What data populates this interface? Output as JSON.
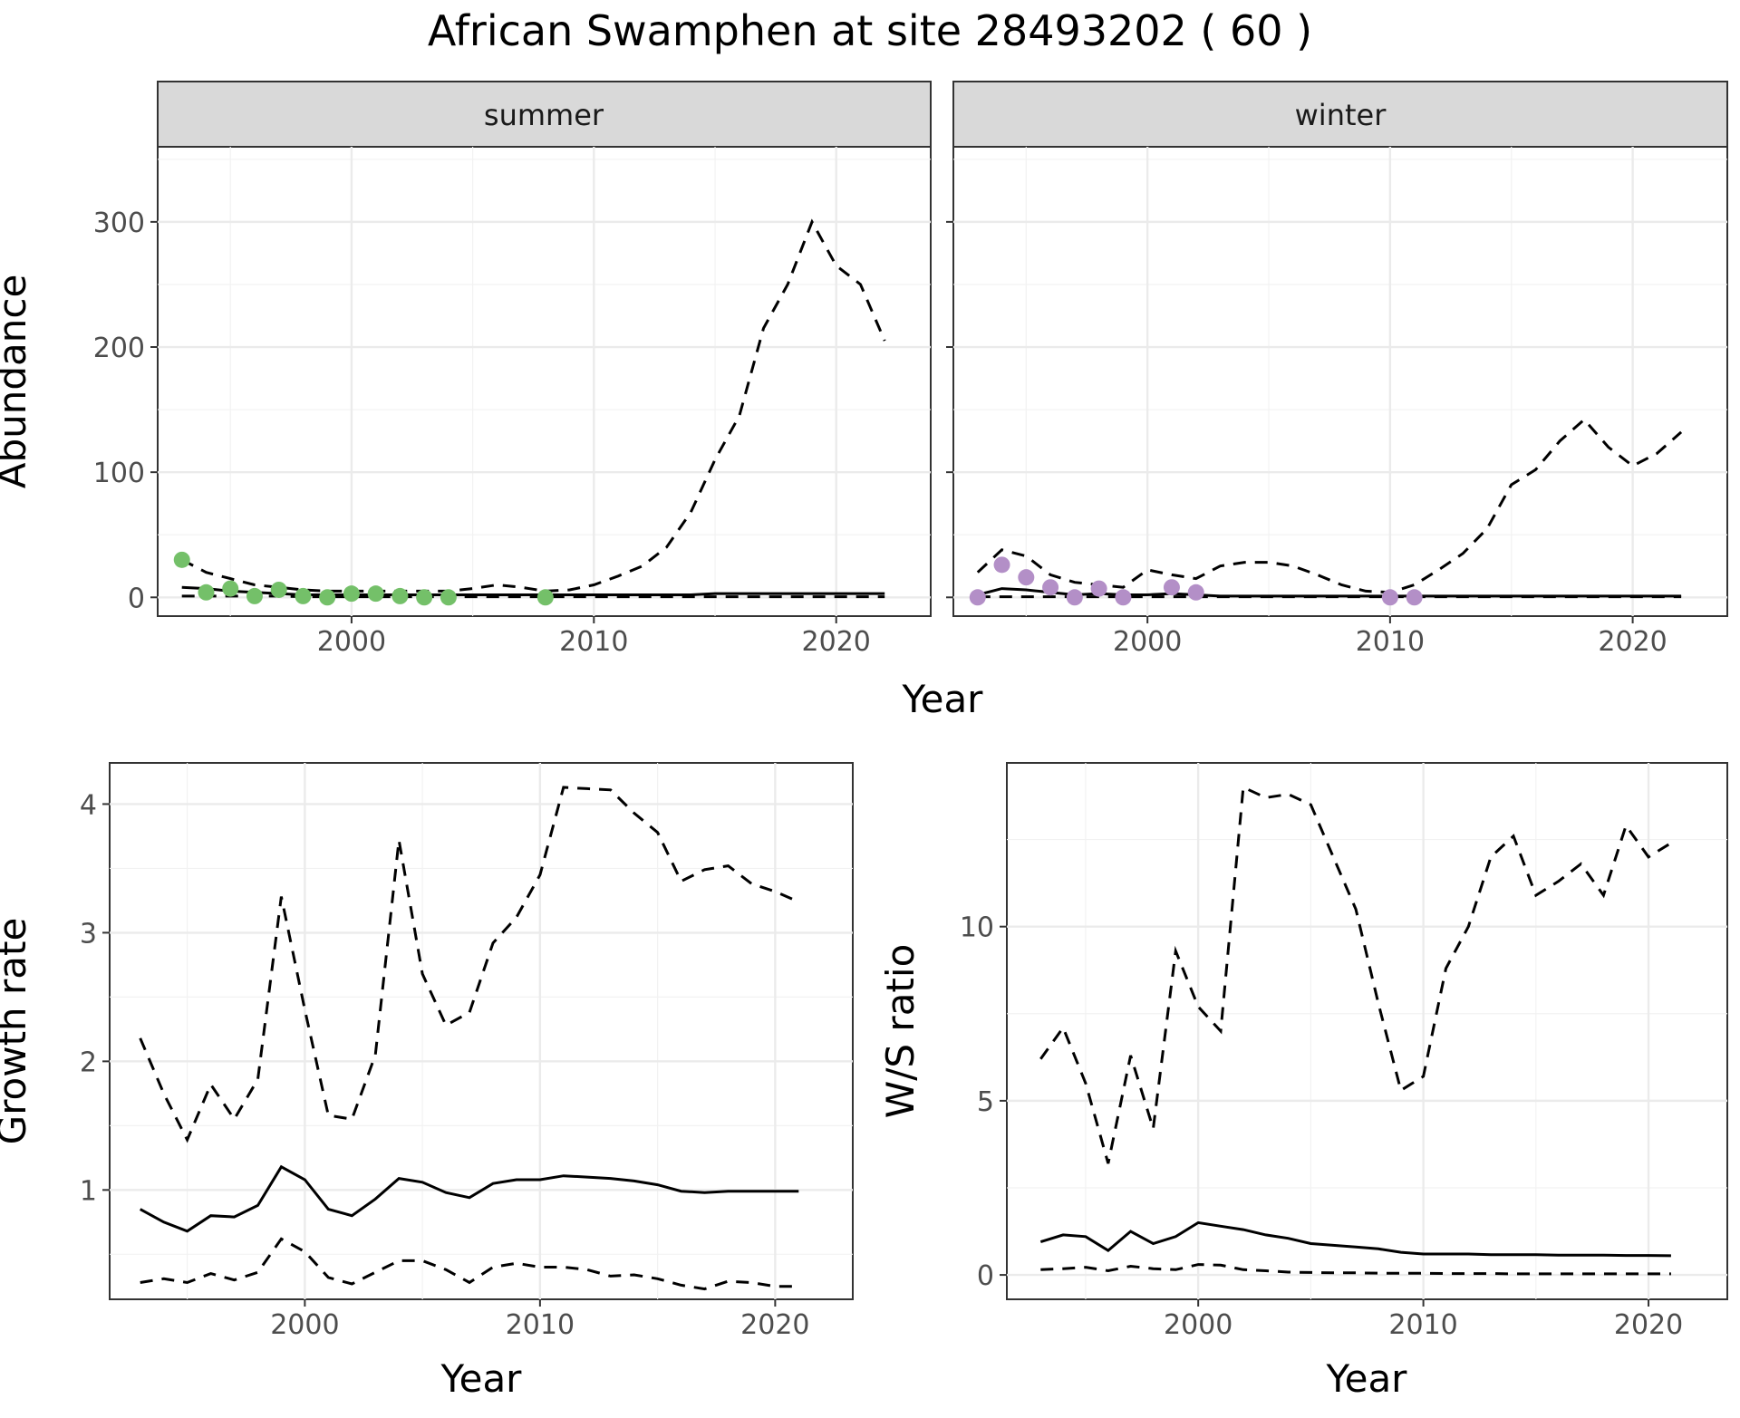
{
  "chart_data": {
    "title": "African Swamphen at site 28493202 ( 60 )",
    "panels": [
      {
        "id": "summer",
        "type": "line",
        "strip": "summer",
        "xlabel": "Year",
        "ylabel": "Abundance",
        "xlim": [
          1992,
          2023.9
        ],
        "ylim": [
          -15,
          360
        ],
        "xticks": [
          2000,
          2010,
          2020
        ],
        "yticks": [
          0,
          100,
          200,
          300
        ],
        "point_color": "#74c069",
        "series": [
          {
            "name": "fit",
            "style": "solid",
            "x": [
              1993,
              1994,
              1995,
              1996,
              1997,
              1998,
              1999,
              2000,
              2001,
              2002,
              2003,
              2004,
              2005,
              2006,
              2007,
              2008,
              2009,
              2010,
              2011,
              2012,
              2013,
              2014,
              2015,
              2016,
              2017,
              2018,
              2019,
              2020,
              2021,
              2022
            ],
            "y": [
              8,
              7,
              5,
              4,
              3,
              2,
              2,
              2,
              2,
              2,
              2,
              2,
              2,
              2,
              2,
              2,
              2,
              2,
              2,
              2,
              2,
              2,
              3,
              3,
              3,
              3,
              3,
              3,
              3,
              3
            ]
          },
          {
            "name": "upper",
            "style": "dashed",
            "x": [
              1993,
              1994,
              1995,
              1996,
              1997,
              1998,
              1999,
              2000,
              2001,
              2002,
              2003,
              2004,
              2005,
              2006,
              2007,
              2008,
              2009,
              2010,
              2011,
              2012,
              2013,
              2014,
              2015,
              2016,
              2017,
              2018,
              2019,
              2020,
              2021,
              2022
            ],
            "y": [
              30,
              20,
              15,
              10,
              8,
              6,
              5,
              5,
              5,
              5,
              5,
              5,
              7,
              10,
              8,
              5,
              6,
              10,
              17,
              25,
              40,
              68,
              110,
              145,
              215,
              250,
              300,
              265,
              250,
              205
            ]
          },
          {
            "name": "lower",
            "style": "dashed",
            "x": [
              1993,
              1994,
              1995,
              1996,
              1997,
              1998,
              1999,
              2000,
              2001,
              2002,
              2003,
              2004,
              2005,
              2006,
              2007,
              2008,
              2009,
              2010,
              2011,
              2012,
              2013,
              2014,
              2015,
              2016,
              2017,
              2018,
              2019,
              2020,
              2021,
              2022
            ],
            "y": [
              1,
              1,
              1,
              1,
              1,
              0.5,
              0.5,
              0.5,
              0.5,
              0.5,
              0.5,
              0.5,
              0.5,
              0.5,
              0.5,
              0.5,
              0.5,
              0.5,
              0.5,
              0.5,
              0.5,
              0.5,
              0.5,
              0.5,
              0.5,
              0.5,
              0.5,
              0.5,
              0.5,
              0.5
            ]
          }
        ],
        "points": {
          "x": [
            1993,
            1994,
            1995,
            1996,
            1997,
            1998,
            1999,
            2000,
            2001,
            2002,
            2003,
            2004,
            2008
          ],
          "y": [
            30,
            4,
            7,
            1,
            6,
            1,
            0,
            3,
            3,
            1,
            0,
            0,
            0
          ]
        }
      },
      {
        "id": "winter",
        "type": "line",
        "strip": "winter",
        "xlabel": "",
        "ylabel": "",
        "xlim": [
          1992,
          2023.9
        ],
        "ylim": [
          -15,
          360
        ],
        "xticks": [
          2000,
          2010,
          2020
        ],
        "yticks": [
          0,
          100,
          200,
          300
        ],
        "point_color": "#b38fc7",
        "series": [
          {
            "name": "fit",
            "style": "solid",
            "x": [
              1993,
              1994,
              1995,
              1996,
              1997,
              1998,
              1999,
              2000,
              2001,
              2002,
              2003,
              2004,
              2005,
              2006,
              2007,
              2008,
              2009,
              2010,
              2011,
              2012,
              2013,
              2014,
              2015,
              2016,
              2017,
              2018,
              2019,
              2020,
              2021,
              2022
            ],
            "y": [
              2,
              7,
              6,
              4,
              2,
              3,
              2,
              2,
              3,
              2,
              1,
              1,
              1,
              1,
              1,
              1,
              1,
              1,
              1,
              1,
              1,
              1,
              1,
              1,
              1,
              1,
              1,
              1,
              1,
              1
            ]
          },
          {
            "name": "upper",
            "style": "dashed",
            "x": [
              1993,
              1994,
              1995,
              1996,
              1997,
              1998,
              1999,
              2000,
              2001,
              2002,
              2003,
              2004,
              2005,
              2006,
              2007,
              2008,
              2009,
              2010,
              2011,
              2012,
              2013,
              2014,
              2015,
              2016,
              2017,
              2018,
              2019,
              2020,
              2021,
              2022
            ],
            "y": [
              20,
              38,
              33,
              18,
              12,
              10,
              8,
              22,
              18,
              15,
              25,
              28,
              28,
              25,
              18,
              10,
              5,
              4,
              10,
              22,
              35,
              55,
              90,
              102,
              125,
              142,
              120,
              105,
              115,
              132
            ]
          },
          {
            "name": "lower",
            "style": "dashed",
            "x": [
              1993,
              1994,
              1995,
              1996,
              1997,
              1998,
              1999,
              2000,
              2001,
              2002,
              2003,
              2004,
              2005,
              2006,
              2007,
              2008,
              2009,
              2010,
              2011,
              2012,
              2013,
              2014,
              2015,
              2016,
              2017,
              2018,
              2019,
              2020,
              2021,
              2022
            ],
            "y": [
              0.5,
              0.5,
              0.5,
              0.5,
              0.5,
              0.5,
              0.5,
              0.5,
              0.5,
              0.5,
              0.5,
              0.5,
              0.5,
              0.5,
              0.5,
              0.5,
              0.5,
              0.5,
              0.5,
              0.5,
              0.5,
              0.5,
              0.5,
              0.5,
              0.5,
              0.5,
              0.5,
              0.5,
              0.5,
              0.5
            ]
          }
        ],
        "points": {
          "x": [
            1993,
            1994,
            1995,
            1996,
            1997,
            1998,
            1999,
            2001,
            2002,
            2010,
            2011
          ],
          "y": [
            0,
            26,
            16,
            8,
            0,
            7,
            0,
            8,
            4,
            0,
            0
          ]
        }
      },
      {
        "id": "growth",
        "type": "line",
        "strip": "",
        "xlabel": "Year",
        "ylabel": "Growth rate",
        "xlim": [
          1991.7,
          2023.3
        ],
        "ylim": [
          0.15,
          4.32
        ],
        "xticks": [
          2000,
          2010,
          2020
        ],
        "yticks": [
          1,
          2,
          3,
          4
        ],
        "series": [
          {
            "name": "fit",
            "style": "solid",
            "x": [
              1993,
              1994,
              1995,
              1996,
              1997,
              1998,
              1999,
              2000,
              2001,
              2002,
              2003,
              2004,
              2005,
              2006,
              2007,
              2008,
              2009,
              2010,
              2011,
              2012,
              2013,
              2014,
              2015,
              2016,
              2017,
              2018,
              2019,
              2020,
              2021
            ],
            "y": [
              0.85,
              0.75,
              0.68,
              0.8,
              0.79,
              0.88,
              1.18,
              1.08,
              0.85,
              0.8,
              0.93,
              1.09,
              1.06,
              0.98,
              0.94,
              1.05,
              1.08,
              1.08,
              1.11,
              1.1,
              1.09,
              1.07,
              1.04,
              0.99,
              0.98,
              0.99,
              0.99,
              0.99,
              0.99
            ]
          },
          {
            "name": "upper",
            "style": "dashed",
            "x": [
              1993,
              1994,
              1995,
              1996,
              1997,
              1998,
              1999,
              2000,
              2001,
              2002,
              2003,
              2004,
              2005,
              2006,
              2007,
              2008,
              2009,
              2010,
              2011,
              2012,
              2013,
              2014,
              2015,
              2016,
              2017,
              2018,
              2019,
              2020,
              2021
            ],
            "y": [
              2.18,
              1.75,
              1.39,
              1.82,
              1.55,
              1.86,
              3.28,
              2.4,
              1.58,
              1.55,
              2.05,
              3.72,
              2.68,
              2.28,
              2.38,
              2.92,
              3.12,
              3.45,
              4.13,
              4.12,
              4.11,
              3.93,
              3.78,
              3.4,
              3.49,
              3.52,
              3.38,
              3.32,
              3.24
            ]
          },
          {
            "name": "lower",
            "style": "dashed",
            "x": [
              1993,
              1994,
              1995,
              1996,
              1997,
              1998,
              1999,
              2000,
              2001,
              2002,
              2003,
              2004,
              2005,
              2006,
              2007,
              2008,
              2009,
              2010,
              2011,
              2012,
              2013,
              2014,
              2015,
              2016,
              2017,
              2018,
              2019,
              2020,
              2021
            ],
            "y": [
              0.28,
              0.31,
              0.28,
              0.35,
              0.3,
              0.36,
              0.62,
              0.52,
              0.32,
              0.27,
              0.36,
              0.45,
              0.45,
              0.38,
              0.28,
              0.4,
              0.43,
              0.4,
              0.4,
              0.38,
              0.33,
              0.34,
              0.31,
              0.26,
              0.23,
              0.29,
              0.28,
              0.25,
              0.25
            ]
          }
        ]
      },
      {
        "id": "ratio",
        "type": "line",
        "strip": "",
        "xlabel": "Year",
        "ylabel": "W/S ratio",
        "xlim": [
          1991.5,
          2023.5
        ],
        "ylim": [
          -0.7,
          14.7
        ],
        "xticks": [
          2000,
          2010,
          2020
        ],
        "yticks": [
          0,
          5,
          10
        ],
        "series": [
          {
            "name": "fit",
            "style": "solid",
            "x": [
              1993,
              1994,
              1995,
              1996,
              1997,
              1998,
              1999,
              2000,
              2001,
              2002,
              2003,
              2004,
              2005,
              2006,
              2007,
              2008,
              2009,
              2010,
              2011,
              2012,
              2013,
              2014,
              2015,
              2016,
              2017,
              2018,
              2019,
              2020,
              2021
            ],
            "y": [
              0.95,
              1.15,
              1.1,
              0.7,
              1.25,
              0.9,
              1.1,
              1.5,
              1.4,
              1.3,
              1.15,
              1.05,
              0.9,
              0.85,
              0.8,
              0.75,
              0.65,
              0.6,
              0.6,
              0.6,
              0.58,
              0.58,
              0.58,
              0.57,
              0.57,
              0.57,
              0.56,
              0.56,
              0.55
            ]
          },
          {
            "name": "upper",
            "style": "dashed",
            "x": [
              1993,
              1994,
              1995,
              1996,
              1997,
              1998,
              1999,
              2000,
              2001,
              2002,
              2003,
              2004,
              2005,
              2006,
              2007,
              2008,
              2009,
              2010,
              2011,
              2012,
              2013,
              2014,
              2015,
              2016,
              2017,
              2018,
              2019,
              2020,
              2021
            ],
            "y": [
              6.2,
              7.1,
              5.5,
              3.2,
              6.3,
              4.2,
              9.3,
              7.7,
              7.0,
              14.0,
              13.7,
              13.8,
              13.5,
              12.0,
              10.5,
              7.8,
              5.3,
              5.7,
              8.8,
              10.0,
              12.0,
              12.6,
              10.9,
              11.3,
              11.8,
              10.9,
              12.9,
              12.0,
              12.4
            ]
          },
          {
            "name": "lower",
            "style": "dashed",
            "x": [
              1993,
              1994,
              1995,
              1996,
              1997,
              1998,
              1999,
              2000,
              2001,
              2002,
              2003,
              2004,
              2005,
              2006,
              2007,
              2008,
              2009,
              2010,
              2011,
              2012,
              2013,
              2014,
              2015,
              2016,
              2017,
              2018,
              2019,
              2020,
              2021
            ],
            "y": [
              0.15,
              0.18,
              0.22,
              0.12,
              0.25,
              0.18,
              0.15,
              0.3,
              0.28,
              0.15,
              0.12,
              0.08,
              0.07,
              0.06,
              0.06,
              0.05,
              0.05,
              0.05,
              0.04,
              0.04,
              0.04,
              0.03,
              0.03,
              0.03,
              0.03,
              0.03,
              0.03,
              0.03,
              0.03
            ]
          }
        ]
      }
    ]
  }
}
